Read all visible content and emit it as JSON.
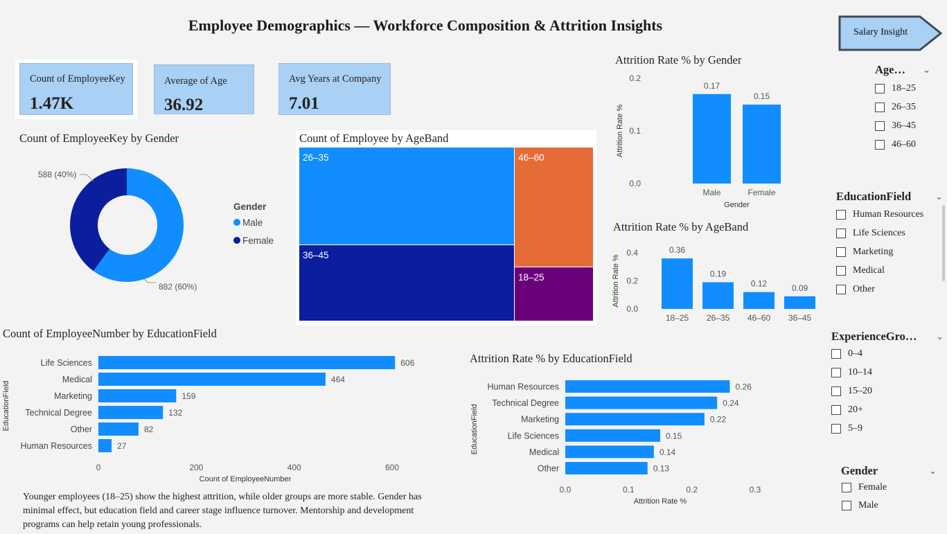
{
  "page_title": "Employee Demographics — Workforce Composition & Attrition Insights",
  "salary_button": "Salary Insight",
  "kpis": [
    {
      "label": "Count of EmployeeKey",
      "value": "1.47K"
    },
    {
      "label": "Average of Age",
      "value": "36.92"
    },
    {
      "label": "Avg Years at Company",
      "value": "7.01"
    }
  ],
  "gender_donut": {
    "title": "Count of EmployeeKey by Gender",
    "legend_title": "Gender",
    "slices": [
      {
        "name": "Male",
        "value": 882,
        "label": "882 (60%)",
        "color": "#118dff"
      },
      {
        "name": "Female",
        "value": 588,
        "label": "588 (40%)",
        "color": "#0a1e9e"
      }
    ]
  },
  "ageband_treemap": {
    "title": "Count of Employee by AgeBand",
    "cells": [
      {
        "name": "26–35",
        "color": "#118dff"
      },
      {
        "name": "36–45",
        "color": "#0a1e9e"
      },
      {
        "name": "46–60",
        "color": "#e66c37"
      },
      {
        "name": "18–25",
        "color": "#6b007b"
      }
    ]
  },
  "charts": {
    "attr_gender": {
      "type": "bar",
      "title": "Attrition Rate % by Gender",
      "categories": [
        "Male",
        "Female"
      ],
      "values": [
        0.17,
        0.15
      ],
      "value_labels": [
        "0.17",
        "0.15"
      ],
      "ylabel": "Attrition Rate %",
      "xlabel": "Gender",
      "ylim": [
        0,
        0.2
      ],
      "yticks": [
        "0.0",
        "0.1",
        "0.2"
      ]
    },
    "attr_age": {
      "type": "bar",
      "title": "Attrition Rate % by AgeBand",
      "categories": [
        "18–25",
        "26–35",
        "46–60",
        "36–45"
      ],
      "values": [
        0.36,
        0.19,
        0.12,
        0.09
      ],
      "value_labels": [
        "0.36",
        "0.19",
        "0.12",
        "0.09"
      ],
      "ylabel": "Attrition Rate %",
      "ylim": [
        0,
        0.4
      ],
      "yticks": [
        "0.0",
        "0.2",
        "0.4"
      ]
    },
    "count_edu": {
      "type": "bar",
      "orientation": "horizontal",
      "title": "Count of EmployeeNumber by EducationField",
      "categories": [
        "Life Sciences",
        "Medical",
        "Marketing",
        "Technical Degree",
        "Other",
        "Human Resources"
      ],
      "values": [
        606,
        464,
        159,
        132,
        82,
        27
      ],
      "value_labels": [
        "606",
        "464",
        "159",
        "132",
        "82",
        "27"
      ],
      "xlabel": "Count of EmployeeNumber",
      "ylabel": "EducationField",
      "xlim": [
        0,
        600
      ],
      "xticks": [
        "0",
        "200",
        "400",
        "600"
      ]
    },
    "attr_edu": {
      "type": "bar",
      "orientation": "horizontal",
      "title": "Attrition Rate % by EducationField",
      "categories": [
        "Human Resources",
        "Technical Degree",
        "Marketing",
        "Life Sciences",
        "Medical",
        "Other"
      ],
      "values": [
        0.26,
        0.24,
        0.22,
        0.15,
        0.14,
        0.13
      ],
      "value_labels": [
        "0.26",
        "0.24",
        "0.22",
        "0.15",
        "0.14",
        "0.13"
      ],
      "xlabel": "Attrition Rate %",
      "ylabel": "EducationField",
      "xlim": [
        0,
        0.3
      ],
      "xticks": [
        "0.0",
        "0.1",
        "0.2",
        "0.3"
      ]
    }
  },
  "chart_data": [
    {
      "type": "pie",
      "title": "Count of EmployeeKey by Gender",
      "categories": [
        "Male",
        "Female"
      ],
      "values": [
        882,
        588
      ]
    },
    {
      "type": "bar",
      "title": "Attrition Rate % by Gender",
      "categories": [
        "Male",
        "Female"
      ],
      "values": [
        0.17,
        0.15
      ],
      "xlabel": "Gender",
      "ylabel": "Attrition Rate %",
      "ylim": [
        0,
        0.2
      ]
    },
    {
      "type": "bar",
      "title": "Attrition Rate % by AgeBand",
      "categories": [
        "18–25",
        "26–35",
        "46–60",
        "36–45"
      ],
      "values": [
        0.36,
        0.19,
        0.12,
        0.09
      ],
      "ylabel": "Attrition Rate %",
      "ylim": [
        0,
        0.4
      ]
    },
    {
      "type": "bar",
      "title": "Count of EmployeeNumber by EducationField",
      "categories": [
        "Life Sciences",
        "Medical",
        "Marketing",
        "Technical Degree",
        "Other",
        "Human Resources"
      ],
      "values": [
        606,
        464,
        159,
        132,
        82,
        27
      ],
      "xlabel": "Count of EmployeeNumber",
      "ylabel": "EducationField"
    },
    {
      "type": "bar",
      "title": "Attrition Rate % by EducationField",
      "categories": [
        "Human Resources",
        "Technical Degree",
        "Marketing",
        "Life Sciences",
        "Medical",
        "Other"
      ],
      "values": [
        0.26,
        0.24,
        0.22,
        0.15,
        0.14,
        0.13
      ],
      "xlabel": "Attrition Rate %",
      "ylabel": "EducationField",
      "xlim": [
        0,
        0.3
      ]
    }
  ],
  "slicers": {
    "age": {
      "title": "Age…",
      "options": [
        "18–25",
        "26–35",
        "36–45",
        "46–60"
      ]
    },
    "education": {
      "title": "EducationField",
      "options": [
        "Human Resources",
        "Life Sciences",
        "Marketing",
        "Medical",
        "Other"
      ]
    },
    "experience": {
      "title": "ExperienceGro…",
      "options": [
        "0–4",
        "10–14",
        "15–20",
        "20+",
        "5–9"
      ]
    },
    "gender": {
      "title": "Gender",
      "options": [
        "Female",
        "Male"
      ]
    }
  },
  "insight_text": "Younger employees (18–25) show the highest attrition, while older groups are more stable. Gender has minimal effect, but education field and career stage influence turnover. Mentorship and development programs can help retain young professionals.",
  "colors": {
    "bar": "#118dff",
    "kpi_bg": "#a9d0f5",
    "page_bg": "#f3f3f3"
  },
  "icons": {
    "slicer_toggle": "chevron-down-icon"
  }
}
